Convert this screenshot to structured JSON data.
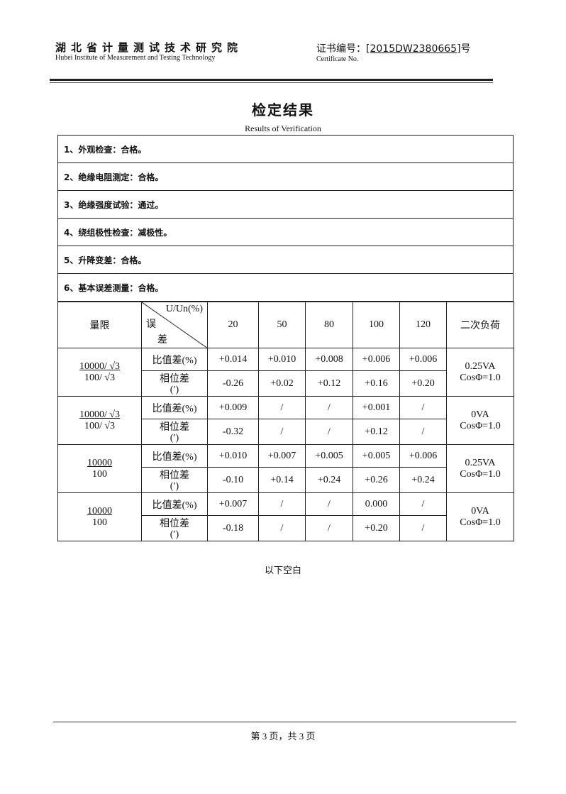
{
  "header": {
    "org_cn": "湖北省计量测试技术研究院",
    "org_en": "Hubei Institute of Measurement and Testing Technology",
    "cert_label": "证书编号：",
    "cert_no": "2015DW2380665",
    "cert_open": "[",
    "cert_close": "]号",
    "cert_en": "Certificate No."
  },
  "title": {
    "cn": "检定结果",
    "en": "Results of Verification"
  },
  "checks": [
    "1、外观检查：合格。",
    "2、绝缘电阻测定：合格。",
    "3、绝缘强度试验：通过。",
    "4、绕组极性检查：减极性。",
    "5、升降变差：合格。",
    "6、基本误差测量：合格。"
  ],
  "table": {
    "range_header": "量限",
    "diag_top": "U/Un(%)",
    "diag_bottom1": "误",
    "diag_bottom2": "差",
    "columns": [
      "20",
      "50",
      "80",
      "100",
      "120"
    ],
    "load_header": "二次负荷",
    "ratio_label": "比值差(%)",
    "phase_label": "相位差",
    "phase_unit": "(′)",
    "groups": [
      {
        "range_num": "10000/ √3",
        "range_den": "100/ √3",
        "ratio": [
          "+0.014",
          "+0.010",
          "+0.008",
          "+0.006",
          "+0.006"
        ],
        "phase": [
          "-0.26",
          "+0.02",
          "+0.12",
          "+0.16",
          "+0.20"
        ],
        "load1": "0.25VA",
        "load2": "CosΦ=1.0"
      },
      {
        "range_num": "10000/ √3",
        "range_den": "100/ √3",
        "ratio": [
          "+0.009",
          "/",
          "/",
          "+0.001",
          "/"
        ],
        "phase": [
          "-0.32",
          "/",
          "/",
          "+0.12",
          "/"
        ],
        "load1": "0VA",
        "load2": "CosΦ=1.0"
      },
      {
        "range_num": "10000",
        "range_den": "100",
        "ratio": [
          "+0.010",
          "+0.007",
          "+0.005",
          "+0.005",
          "+0.006"
        ],
        "phase": [
          "-0.10",
          "+0.14",
          "+0.24",
          "+0.26",
          "+0.24"
        ],
        "load1": "0.25VA",
        "load2": "CosΦ=1.0"
      },
      {
        "range_num": "10000",
        "range_den": "100",
        "ratio": [
          "+0.007",
          "/",
          "/",
          "0.000",
          "/"
        ],
        "phase": [
          "-0.18",
          "/",
          "/",
          "+0.20",
          "/"
        ],
        "load1": "0VA",
        "load2": "CosΦ=1.0"
      }
    ]
  },
  "blank_note": "以下空白",
  "footer": "第 3 页，共 3 页"
}
